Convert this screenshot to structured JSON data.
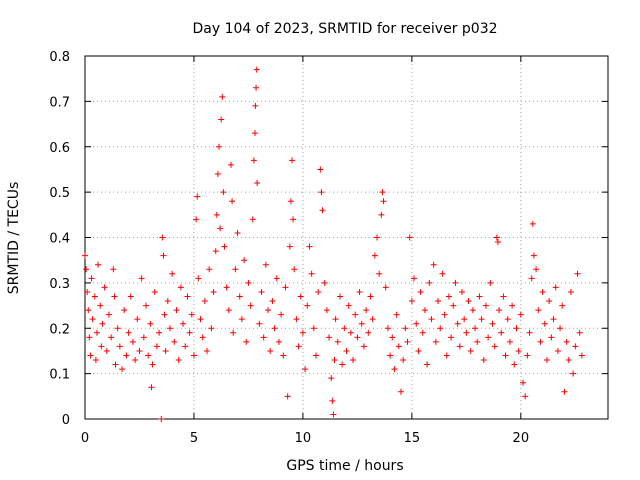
{
  "chart_data": {
    "type": "scatter",
    "title": "Day 104 of 2023, SRMTID for receiver p032",
    "xlabel": "GPS time / hours",
    "ylabel": "SRMTID / TECUs",
    "xlim": [
      0,
      24
    ],
    "ylim": [
      0,
      0.8
    ],
    "xticks": [
      0,
      5,
      10,
      15,
      20
    ],
    "xtick_labels": [
      "0",
      "5",
      "10",
      "15",
      "20"
    ],
    "yticks": [
      0,
      0.1,
      0.2,
      0.3,
      0.4,
      0.5,
      0.6,
      0.7,
      0.8
    ],
    "ytick_labels": [
      "0",
      "0.1",
      "0.2",
      "0.3",
      "0.4",
      "0.5",
      "0.6",
      "0.7",
      "0.8"
    ],
    "grid": true,
    "marker": "+",
    "color": "#ff0000",
    "series": [
      {
        "name": "SRMTID",
        "points": [
          [
            0.0,
            0.36
          ],
          [
            0.05,
            0.33
          ],
          [
            0.1,
            0.28
          ],
          [
            0.15,
            0.24
          ],
          [
            0.2,
            0.18
          ],
          [
            0.25,
            0.14
          ],
          [
            0.3,
            0.31
          ],
          [
            0.35,
            0.22
          ],
          [
            0.45,
            0.27
          ],
          [
            0.5,
            0.13
          ],
          [
            0.55,
            0.19
          ],
          [
            0.6,
            0.34
          ],
          [
            0.7,
            0.25
          ],
          [
            0.75,
            0.16
          ],
          [
            0.8,
            0.21
          ],
          [
            0.9,
            0.29
          ],
          [
            1.0,
            0.15
          ],
          [
            1.1,
            0.23
          ],
          [
            1.2,
            0.18
          ],
          [
            1.3,
            0.33
          ],
          [
            1.35,
            0.27
          ],
          [
            1.4,
            0.12
          ],
          [
            1.5,
            0.2
          ],
          [
            1.6,
            0.16
          ],
          [
            1.7,
            0.11
          ],
          [
            1.8,
            0.24
          ],
          [
            1.9,
            0.14
          ],
          [
            2.0,
            0.19
          ],
          [
            2.1,
            0.27
          ],
          [
            2.2,
            0.17
          ],
          [
            2.3,
            0.13
          ],
          [
            2.4,
            0.22
          ],
          [
            2.5,
            0.15
          ],
          [
            2.6,
            0.31
          ],
          [
            2.7,
            0.18
          ],
          [
            2.8,
            0.25
          ],
          [
            2.9,
            0.14
          ],
          [
            3.0,
            0.21
          ],
          [
            3.05,
            0.07
          ],
          [
            3.1,
            0.12
          ],
          [
            3.2,
            0.28
          ],
          [
            3.3,
            0.16
          ],
          [
            3.4,
            0.19
          ],
          [
            3.5,
            0.0
          ],
          [
            3.55,
            0.4
          ],
          [
            3.6,
            0.36
          ],
          [
            3.65,
            0.23
          ],
          [
            3.7,
            0.15
          ],
          [
            3.8,
            0.26
          ],
          [
            3.9,
            0.2
          ],
          [
            4.0,
            0.32
          ],
          [
            4.1,
            0.17
          ],
          [
            4.2,
            0.24
          ],
          [
            4.3,
            0.13
          ],
          [
            4.4,
            0.29
          ],
          [
            4.5,
            0.21
          ],
          [
            4.6,
            0.16
          ],
          [
            4.7,
            0.27
          ],
          [
            4.8,
            0.19
          ],
          [
            4.9,
            0.23
          ],
          [
            5.0,
            0.14
          ],
          [
            5.1,
            0.44
          ],
          [
            5.15,
            0.49
          ],
          [
            5.2,
            0.31
          ],
          [
            5.3,
            0.22
          ],
          [
            5.4,
            0.18
          ],
          [
            5.5,
            0.26
          ],
          [
            5.6,
            0.15
          ],
          [
            5.7,
            0.33
          ],
          [
            5.8,
            0.2
          ],
          [
            5.9,
            0.28
          ],
          [
            6.0,
            0.37
          ],
          [
            6.05,
            0.45
          ],
          [
            6.1,
            0.54
          ],
          [
            6.15,
            0.6
          ],
          [
            6.2,
            0.42
          ],
          [
            6.25,
            0.66
          ],
          [
            6.3,
            0.71
          ],
          [
            6.35,
            0.5
          ],
          [
            6.4,
            0.38
          ],
          [
            6.5,
            0.29
          ],
          [
            6.6,
            0.24
          ],
          [
            6.7,
            0.56
          ],
          [
            6.75,
            0.48
          ],
          [
            6.8,
            0.19
          ],
          [
            6.9,
            0.33
          ],
          [
            7.0,
            0.41
          ],
          [
            7.1,
            0.27
          ],
          [
            7.2,
            0.22
          ],
          [
            7.3,
            0.35
          ],
          [
            7.4,
            0.17
          ],
          [
            7.5,
            0.3
          ],
          [
            7.6,
            0.25
          ],
          [
            7.7,
            0.44
          ],
          [
            7.75,
            0.57
          ],
          [
            7.8,
            0.63
          ],
          [
            7.82,
            0.69
          ],
          [
            7.85,
            0.73
          ],
          [
            7.88,
            0.77
          ],
          [
            7.9,
            0.52
          ],
          [
            8.0,
            0.21
          ],
          [
            8.1,
            0.28
          ],
          [
            8.2,
            0.18
          ],
          [
            8.3,
            0.34
          ],
          [
            8.4,
            0.24
          ],
          [
            8.5,
            0.15
          ],
          [
            8.6,
            0.26
          ],
          [
            8.7,
            0.2
          ],
          [
            8.8,
            0.31
          ],
          [
            8.9,
            0.17
          ],
          [
            9.0,
            0.23
          ],
          [
            9.1,
            0.14
          ],
          [
            9.2,
            0.29
          ],
          [
            9.3,
            0.05
          ],
          [
            9.4,
            0.38
          ],
          [
            9.45,
            0.48
          ],
          [
            9.5,
            0.57
          ],
          [
            9.55,
            0.44
          ],
          [
            9.6,
            0.33
          ],
          [
            9.7,
            0.22
          ],
          [
            9.8,
            0.16
          ],
          [
            9.9,
            0.27
          ],
          [
            10.0,
            0.19
          ],
          [
            10.1,
            0.11
          ],
          [
            10.2,
            0.25
          ],
          [
            10.3,
            0.38
          ],
          [
            10.4,
            0.32
          ],
          [
            10.5,
            0.2
          ],
          [
            10.6,
            0.14
          ],
          [
            10.7,
            0.28
          ],
          [
            10.8,
            0.55
          ],
          [
            10.85,
            0.5
          ],
          [
            10.9,
            0.46
          ],
          [
            11.0,
            0.3
          ],
          [
            11.1,
            0.24
          ],
          [
            11.2,
            0.18
          ],
          [
            11.3,
            0.09
          ],
          [
            11.35,
            0.04
          ],
          [
            11.4,
            0.01
          ],
          [
            11.45,
            0.13
          ],
          [
            11.5,
            0.22
          ],
          [
            11.6,
            0.17
          ],
          [
            11.7,
            0.27
          ],
          [
            11.8,
            0.12
          ],
          [
            11.9,
            0.2
          ],
          [
            12.0,
            0.15
          ],
          [
            12.1,
            0.25
          ],
          [
            12.2,
            0.19
          ],
          [
            12.3,
            0.13
          ],
          [
            12.4,
            0.23
          ],
          [
            12.5,
            0.18
          ],
          [
            12.6,
            0.28
          ],
          [
            12.7,
            0.21
          ],
          [
            12.8,
            0.16
          ],
          [
            12.9,
            0.24
          ],
          [
            13.0,
            0.19
          ],
          [
            13.1,
            0.27
          ],
          [
            13.2,
            0.22
          ],
          [
            13.3,
            0.36
          ],
          [
            13.4,
            0.4
          ],
          [
            13.5,
            0.32
          ],
          [
            13.6,
            0.45
          ],
          [
            13.65,
            0.5
          ],
          [
            13.7,
            0.48
          ],
          [
            13.8,
            0.29
          ],
          [
            13.9,
            0.2
          ],
          [
            14.0,
            0.14
          ],
          [
            14.1,
            0.18
          ],
          [
            14.2,
            0.11
          ],
          [
            14.3,
            0.23
          ],
          [
            14.4,
            0.16
          ],
          [
            14.5,
            0.06
          ],
          [
            14.6,
            0.13
          ],
          [
            14.7,
            0.2
          ],
          [
            14.8,
            0.17
          ],
          [
            14.9,
            0.4
          ],
          [
            15.0,
            0.26
          ],
          [
            15.1,
            0.31
          ],
          [
            15.2,
            0.21
          ],
          [
            15.3,
            0.15
          ],
          [
            15.4,
            0.28
          ],
          [
            15.5,
            0.19
          ],
          [
            15.6,
            0.24
          ],
          [
            15.7,
            0.12
          ],
          [
            15.8,
            0.3
          ],
          [
            15.9,
            0.22
          ],
          [
            16.0,
            0.34
          ],
          [
            16.1,
            0.17
          ],
          [
            16.2,
            0.26
          ],
          [
            16.3,
            0.2
          ],
          [
            16.4,
            0.32
          ],
          [
            16.5,
            0.23
          ],
          [
            16.6,
            0.14
          ],
          [
            16.7,
            0.27
          ],
          [
            16.8,
            0.18
          ],
          [
            16.9,
            0.25
          ],
          [
            17.0,
            0.3
          ],
          [
            17.1,
            0.21
          ],
          [
            17.2,
            0.16
          ],
          [
            17.3,
            0.28
          ],
          [
            17.4,
            0.22
          ],
          [
            17.5,
            0.19
          ],
          [
            17.6,
            0.26
          ],
          [
            17.7,
            0.15
          ],
          [
            17.8,
            0.24
          ],
          [
            17.9,
            0.2
          ],
          [
            18.0,
            0.17
          ],
          [
            18.1,
            0.27
          ],
          [
            18.2,
            0.22
          ],
          [
            18.3,
            0.13
          ],
          [
            18.4,
            0.25
          ],
          [
            18.5,
            0.18
          ],
          [
            18.6,
            0.3
          ],
          [
            18.7,
            0.21
          ],
          [
            18.8,
            0.16
          ],
          [
            18.9,
            0.4
          ],
          [
            18.95,
            0.39
          ],
          [
            19.0,
            0.24
          ],
          [
            19.1,
            0.19
          ],
          [
            19.2,
            0.27
          ],
          [
            19.3,
            0.14
          ],
          [
            19.4,
            0.22
          ],
          [
            19.5,
            0.17
          ],
          [
            19.6,
            0.25
          ],
          [
            19.7,
            0.12
          ],
          [
            19.8,
            0.2
          ],
          [
            19.9,
            0.15
          ],
          [
            20.0,
            0.23
          ],
          [
            20.1,
            0.08
          ],
          [
            20.2,
            0.05
          ],
          [
            20.3,
            0.14
          ],
          [
            20.4,
            0.19
          ],
          [
            20.5,
            0.31
          ],
          [
            20.55,
            0.43
          ],
          [
            20.6,
            0.36
          ],
          [
            20.7,
            0.33
          ],
          [
            20.8,
            0.24
          ],
          [
            20.9,
            0.17
          ],
          [
            21.0,
            0.28
          ],
          [
            21.1,
            0.21
          ],
          [
            21.2,
            0.13
          ],
          [
            21.3,
            0.26
          ],
          [
            21.4,
            0.18
          ],
          [
            21.5,
            0.22
          ],
          [
            21.6,
            0.29
          ],
          [
            21.7,
            0.15
          ],
          [
            21.8,
            0.2
          ],
          [
            21.9,
            0.25
          ],
          [
            22.0,
            0.06
          ],
          [
            22.1,
            0.17
          ],
          [
            22.2,
            0.13
          ],
          [
            22.3,
            0.28
          ],
          [
            22.4,
            0.1
          ],
          [
            22.5,
            0.16
          ],
          [
            22.6,
            0.32
          ],
          [
            22.7,
            0.19
          ],
          [
            22.8,
            0.14
          ]
        ]
      }
    ]
  }
}
